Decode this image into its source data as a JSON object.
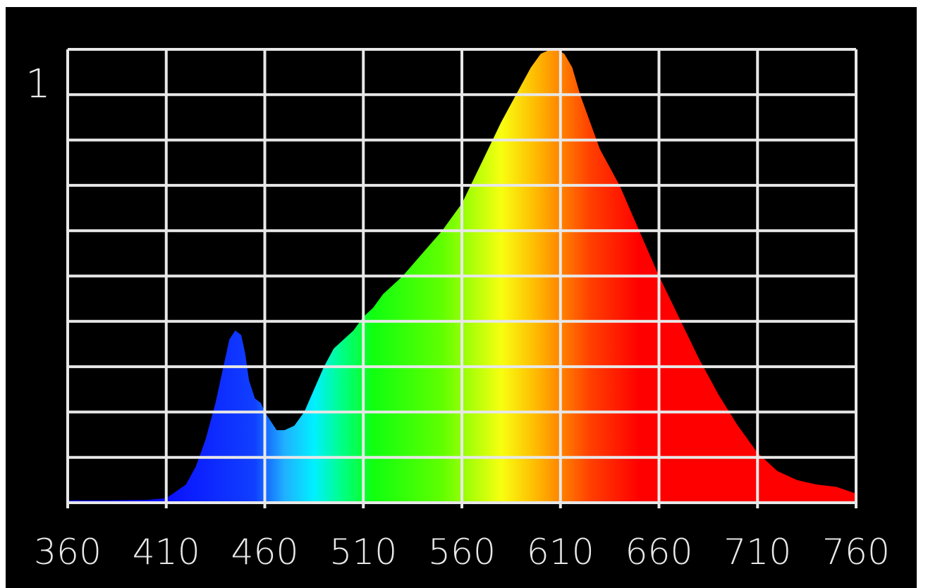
{
  "chart_data": {
    "type": "area",
    "title": "",
    "xlabel": "",
    "ylabel": "",
    "x_ticks": [
      "360",
      "410",
      "460",
      "510",
      "560",
      "610",
      "660",
      "710",
      "760"
    ],
    "y_tick_label": "1",
    "xlim": [
      360,
      760
    ],
    "ylim": [
      0,
      1
    ],
    "grid": true,
    "grid_rows": 10,
    "series": [
      {
        "x": [
          360,
          380,
          400,
          410,
          420,
          425,
          430,
          435,
          440,
          442,
          445,
          448,
          450,
          452,
          455,
          458,
          460,
          463,
          466,
          470,
          475,
          480,
          485,
          490,
          495,
          500,
          505,
          510,
          515,
          520,
          530,
          540,
          550,
          560,
          570,
          580,
          590,
          595,
          600,
          605,
          608,
          612,
          616,
          620,
          625,
          630,
          640,
          650,
          660,
          670,
          680,
          690,
          700,
          710,
          720,
          730,
          740,
          750,
          760
        ],
        "y": [
          0.005,
          0.005,
          0.006,
          0.01,
          0.04,
          0.08,
          0.14,
          0.22,
          0.32,
          0.36,
          0.38,
          0.37,
          0.33,
          0.27,
          0.23,
          0.22,
          0.2,
          0.18,
          0.16,
          0.16,
          0.17,
          0.2,
          0.25,
          0.3,
          0.34,
          0.36,
          0.38,
          0.41,
          0.43,
          0.46,
          0.5,
          0.55,
          0.6,
          0.66,
          0.75,
          0.84,
          0.92,
          0.96,
          0.99,
          1.0,
          1.0,
          0.99,
          0.96,
          0.9,
          0.84,
          0.78,
          0.7,
          0.6,
          0.5,
          0.41,
          0.32,
          0.24,
          0.17,
          0.11,
          0.07,
          0.05,
          0.04,
          0.035,
          0.02
        ]
      }
    ],
    "colors": {
      "background": "#000000",
      "grid": "#e8e8e8",
      "spectrum_stops": [
        {
          "nm": 410,
          "color": "#0a10ff"
        },
        {
          "nm": 455,
          "color": "#1040ff"
        },
        {
          "nm": 470,
          "color": "#20b0ff"
        },
        {
          "nm": 485,
          "color": "#00f0ff"
        },
        {
          "nm": 500,
          "color": "#00ff80"
        },
        {
          "nm": 515,
          "color": "#10ff10"
        },
        {
          "nm": 550,
          "color": "#60ff00"
        },
        {
          "nm": 580,
          "color": "#f8ff10"
        },
        {
          "nm": 600,
          "color": "#ffb000"
        },
        {
          "nm": 625,
          "color": "#ff4000"
        },
        {
          "nm": 650,
          "color": "#ff0000"
        },
        {
          "nm": 760,
          "color": "#ff0000"
        }
      ]
    }
  }
}
